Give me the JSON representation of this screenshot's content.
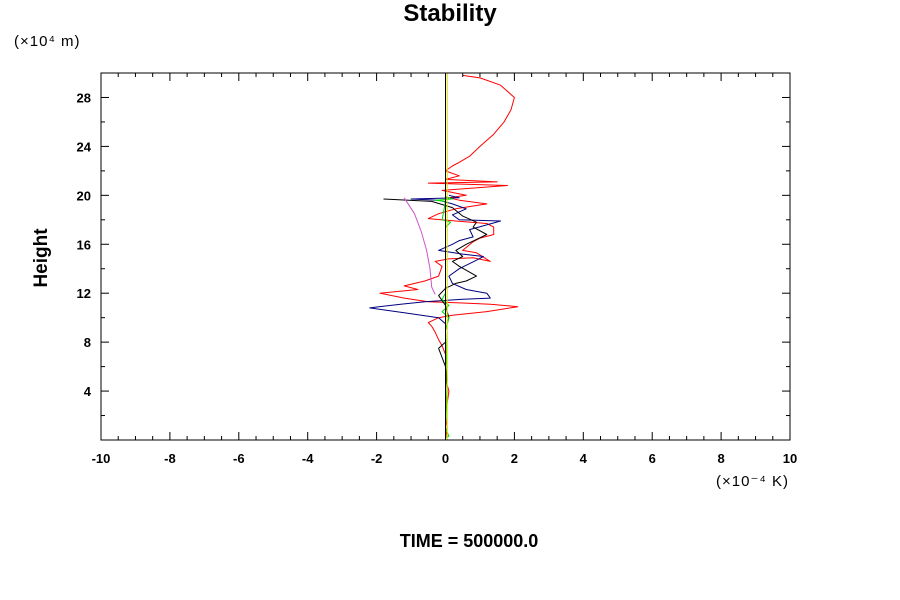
{
  "chart_data": {
    "type": "line",
    "title": "Stability",
    "ylabel": "Height",
    "xlabel": "",
    "y_unit": "(×10⁴ m)",
    "x_unit": "(×10⁻⁴ K)",
    "footer": "TIME = 500000.0",
    "xlim": [
      -10,
      10
    ],
    "ylim": [
      0,
      30
    ],
    "x_ticks": [
      -10,
      -8,
      -6,
      -4,
      -2,
      0,
      2,
      4,
      6,
      8,
      10
    ],
    "y_ticks": [
      4,
      8,
      12,
      16,
      20,
      24,
      28
    ],
    "grid": false,
    "legend": "none",
    "series": [
      {
        "color": "#ff0000",
        "points": [
          [
            0,
            0.1
          ],
          [
            0.05,
            1
          ],
          [
            0,
            2
          ],
          [
            0.05,
            3
          ],
          [
            0.1,
            4
          ],
          [
            0,
            5
          ],
          [
            0.05,
            6
          ],
          [
            0,
            7
          ],
          [
            -0.1,
            7.7
          ],
          [
            -0.2,
            8.2
          ],
          [
            -0.3,
            8.8
          ],
          [
            -0.4,
            9.3
          ],
          [
            -0.5,
            9.6
          ],
          [
            -0.2,
            10
          ],
          [
            0.2,
            10.2
          ],
          [
            1.2,
            10.5
          ],
          [
            2.1,
            10.9
          ],
          [
            1.3,
            11.1
          ],
          [
            0.5,
            11.2
          ],
          [
            -0.5,
            11.3
          ],
          [
            -1.2,
            11.6
          ],
          [
            -1.9,
            12
          ],
          [
            -0.8,
            12.3
          ],
          [
            -1.2,
            12.6
          ],
          [
            -0.6,
            13
          ],
          [
            -0.2,
            13.4
          ],
          [
            -0.1,
            14.2
          ],
          [
            -0.3,
            14.6
          ],
          [
            0.1,
            14.8
          ],
          [
            0.8,
            14.9
          ],
          [
            1.3,
            14.6
          ],
          [
            0.9,
            15.3
          ],
          [
            0.5,
            15.5
          ],
          [
            0.8,
            16.2
          ],
          [
            1.0,
            16.5
          ],
          [
            1.4,
            16.8
          ],
          [
            1.4,
            17.4
          ],
          [
            1.2,
            17.7
          ],
          [
            0.3,
            17.9
          ],
          [
            -0.5,
            18.1
          ],
          [
            -0.2,
            18.5
          ],
          [
            0.3,
            18.9
          ],
          [
            1.2,
            19.3
          ],
          [
            0.4,
            19.6
          ],
          [
            0.1,
            19.8
          ],
          [
            0.6,
            20.0
          ],
          [
            -0.1,
            20.4
          ],
          [
            1.8,
            20.8
          ],
          [
            -0.5,
            21.0
          ],
          [
            1.5,
            21.1
          ],
          [
            0,
            21.3
          ],
          [
            0.4,
            21.6
          ],
          [
            0,
            22.0
          ],
          [
            0.2,
            22.4
          ],
          [
            0.4,
            22.7
          ],
          [
            0.7,
            23.2
          ],
          [
            1.0,
            24.0
          ],
          [
            1.4,
            25.0
          ],
          [
            1.7,
            26.0
          ],
          [
            1.9,
            27.0
          ],
          [
            2.0,
            28.0
          ],
          [
            1.6,
            29.0
          ],
          [
            1.0,
            29.6
          ],
          [
            0.5,
            29.8
          ]
        ]
      },
      {
        "color": "#000080",
        "points": [
          [
            0,
            7
          ],
          [
            0,
            9.5
          ],
          [
            -0.2,
            10.0
          ],
          [
            -1.2,
            10.4
          ],
          [
            -2.2,
            10.8
          ],
          [
            -1.3,
            11.1
          ],
          [
            -0.6,
            11.3
          ],
          [
            0.5,
            11.5
          ],
          [
            1.3,
            11.6
          ],
          [
            1.2,
            12.0
          ],
          [
            0.6,
            12.3
          ],
          [
            0.2,
            12.8
          ],
          [
            0.1,
            13.4
          ],
          [
            0.4,
            14.0
          ],
          [
            0.9,
            14.7
          ],
          [
            1.1,
            15.0
          ],
          [
            0.5,
            15.2
          ],
          [
            -0.2,
            15.5
          ],
          [
            0.2,
            16.0
          ],
          [
            0.4,
            16.3
          ],
          [
            0.8,
            16.6
          ],
          [
            0.7,
            17.2
          ],
          [
            1.6,
            17.9
          ],
          [
            0.4,
            18.0
          ],
          [
            0.2,
            18.4
          ],
          [
            0.6,
            18.9
          ],
          [
            0.2,
            19.3
          ],
          [
            -0.2,
            19.6
          ],
          [
            -1.0,
            19.7
          ],
          [
            0.4,
            19.8
          ],
          [
            0.1,
            20.0
          ]
        ]
      },
      {
        "color": "#000000",
        "points": [
          [
            0,
            0.1
          ],
          [
            0,
            2
          ],
          [
            0.05,
            4
          ],
          [
            0,
            6
          ],
          [
            -0.2,
            7.5
          ],
          [
            0,
            8
          ],
          [
            0,
            9
          ],
          [
            0.1,
            10
          ],
          [
            0,
            11
          ],
          [
            -0.2,
            11.8
          ],
          [
            0,
            12.4
          ],
          [
            0.3,
            12.8
          ],
          [
            0.6,
            13.0
          ],
          [
            0.9,
            13.4
          ],
          [
            0.4,
            14.2
          ],
          [
            0.2,
            14.6
          ],
          [
            0.5,
            15.0
          ],
          [
            0.3,
            15.5
          ],
          [
            0.6,
            16.0
          ],
          [
            0.9,
            16.4
          ],
          [
            1.2,
            16.8
          ],
          [
            0.8,
            17.4
          ],
          [
            0.9,
            17.8
          ],
          [
            0.5,
            18.3
          ],
          [
            0.2,
            19.0
          ],
          [
            -0.4,
            19.5
          ],
          [
            -1.8,
            19.7
          ]
        ]
      },
      {
        "color": "#cc55cc",
        "points": [
          [
            -1.2,
            19.8
          ],
          [
            -0.9,
            18.5
          ],
          [
            -0.7,
            17.0
          ],
          [
            -0.55,
            15.5
          ],
          [
            -0.45,
            14.0
          ],
          [
            -0.4,
            12.5
          ],
          [
            -0.3,
            11.9
          ]
        ]
      },
      {
        "color": "#00dd00",
        "points": [
          [
            0,
            0.2
          ],
          [
            0.1,
            0.3
          ],
          [
            0,
            1
          ],
          [
            0.05,
            5
          ],
          [
            0,
            9
          ],
          [
            0.1,
            10
          ],
          [
            -0.1,
            10.5
          ],
          [
            0.1,
            11.0
          ],
          [
            0,
            11.2
          ],
          [
            -0.1,
            11.5
          ],
          [
            0,
            12
          ],
          [
            0,
            17.4
          ],
          [
            0.15,
            17.8
          ],
          [
            -0.1,
            18.0
          ],
          [
            0,
            19.5
          ],
          [
            -0.3,
            19.6
          ],
          [
            0.2,
            19.7
          ],
          [
            0,
            19.9
          ]
        ]
      },
      {
        "color": "#dddd00",
        "points": [
          [
            0.05,
            0
          ],
          [
            0.05,
            30
          ]
        ]
      },
      {
        "color": "#000000",
        "points": [
          [
            0,
            0
          ],
          [
            0,
            30
          ]
        ]
      }
    ]
  }
}
